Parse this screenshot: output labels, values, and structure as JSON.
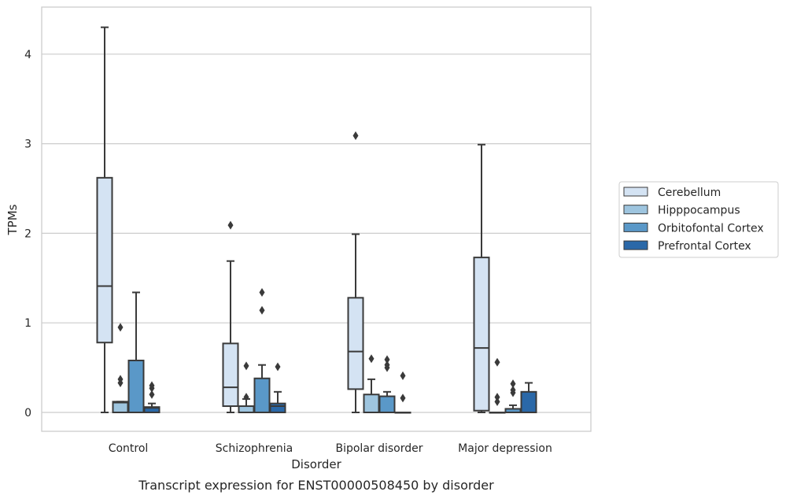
{
  "chart_data": {
    "type": "box",
    "caption": "Transcript expression for ENST00000508450 by disorder",
    "xlabel": "Disorder",
    "ylabel": "TPMs",
    "ylim": [
      -0.2,
      4.55
    ],
    "yticks": [
      0,
      1,
      2,
      3,
      4
    ],
    "grid": true,
    "legend_position": "right",
    "categories": [
      "Control",
      "Schizophrenia",
      "Bipolar disorder",
      "Major depression"
    ],
    "series": [
      {
        "name": "Cerebellum",
        "color": "#d4e3f3",
        "boxes": [
          {
            "whisker_low": 0,
            "q1": 0.78,
            "median": 1.41,
            "q3": 2.62,
            "whisker_high": 4.3,
            "outliers": []
          },
          {
            "whisker_low": 0,
            "q1": 0.07,
            "median": 0.28,
            "q3": 0.77,
            "whisker_high": 1.69,
            "outliers": [
              2.09
            ]
          },
          {
            "whisker_low": 0,
            "q1": 0.26,
            "median": 0.68,
            "q3": 1.28,
            "whisker_high": 1.99,
            "outliers": [
              3.09
            ]
          },
          {
            "whisker_low": 0,
            "q1": 0.02,
            "median": 0.72,
            "q3": 1.73,
            "whisker_high": 2.99,
            "outliers": []
          }
        ]
      },
      {
        "name": "Hipppocampus",
        "color": "#9ec5df",
        "boxes": [
          {
            "whisker_low": 0,
            "q1": 0,
            "median": 0.11,
            "q3": 0.12,
            "whisker_high": 0.12,
            "outliers": [
              0.33,
              0.37,
              0.95
            ]
          },
          {
            "whisker_low": 0,
            "q1": 0,
            "median": 0,
            "q3": 0.07,
            "whisker_high": 0.15,
            "outliers": [
              0.17,
              0.52
            ]
          },
          {
            "whisker_low": 0,
            "q1": 0,
            "median": 0,
            "q3": 0.2,
            "whisker_high": 0.37,
            "outliers": [
              0.6
            ]
          },
          {
            "whisker_low": 0,
            "q1": 0,
            "median": 0,
            "q3": 0,
            "whisker_high": 0,
            "outliers": [
              0.12,
              0.17,
              0.56
            ]
          }
        ]
      },
      {
        "name": "Orbitofontal Cortex",
        "color": "#5a98c8",
        "boxes": [
          {
            "whisker_low": 0,
            "q1": 0,
            "median": 0,
            "q3": 0.58,
            "whisker_high": 1.34,
            "outliers": []
          },
          {
            "whisker_low": 0,
            "q1": 0,
            "median": 0,
            "q3": 0.38,
            "whisker_high": 0.53,
            "outliers": [
              1.14,
              1.34
            ]
          },
          {
            "whisker_low": 0,
            "q1": 0,
            "median": 0,
            "q3": 0.18,
            "whisker_high": 0.23,
            "outliers": [
              0.5,
              0.53,
              0.59
            ]
          },
          {
            "whisker_low": 0,
            "q1": 0,
            "median": 0,
            "q3": 0.04,
            "whisker_high": 0.08,
            "outliers": [
              0.22,
              0.25,
              0.32
            ]
          }
        ]
      },
      {
        "name": "Prefrontal Cortex",
        "color": "#2a68a8",
        "boxes": [
          {
            "whisker_low": 0,
            "q1": 0,
            "median": 0.05,
            "q3": 0.06,
            "whisker_high": 0.1,
            "outliers": [
              0.2,
              0.27,
              0.3
            ]
          },
          {
            "whisker_low": 0,
            "q1": 0,
            "median": 0.07,
            "q3": 0.1,
            "whisker_high": 0.23,
            "outliers": [
              0.51
            ]
          },
          {
            "whisker_low": 0,
            "q1": 0,
            "median": 0,
            "q3": 0,
            "whisker_high": 0,
            "outliers": [
              0.16,
              0.41
            ]
          },
          {
            "whisker_low": 0,
            "q1": 0,
            "median": 0,
            "q3": 0.23,
            "whisker_high": 0.33,
            "outliers": []
          }
        ]
      }
    ]
  }
}
